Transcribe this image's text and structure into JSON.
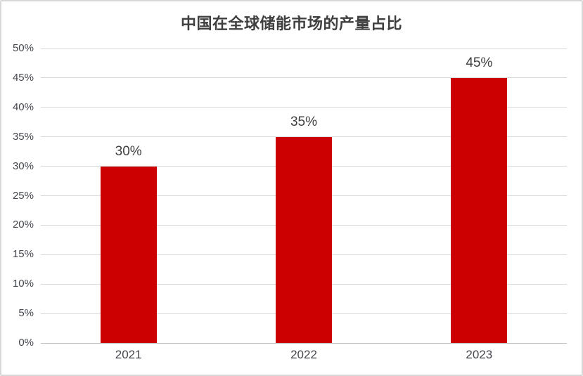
{
  "window": {
    "background_color": "#FFFFFF",
    "border_color": "#D8D8D8"
  },
  "chart_data": {
    "type": "bar",
    "title": "中国在全球储能市场的产量占比",
    "categories": [
      "2021",
      "2022",
      "2023"
    ],
    "values": [
      30,
      35,
      45
    ],
    "value_labels": [
      "30%",
      "35%",
      "45%"
    ],
    "xlabel": "",
    "ylabel": "",
    "ylim": [
      0,
      50
    ],
    "ytick_step": 5,
    "ytick_labels": [
      "0%",
      "5%",
      "10%",
      "15%",
      "20%",
      "25%",
      "30%",
      "35%",
      "40%",
      "45%",
      "50%"
    ],
    "grid": true,
    "legend": "none",
    "bar_color": "#CC0000",
    "gridline_color": "#D9D9D9",
    "axis_line_color": "#C0C0C0",
    "title_color": "#3F3F3F",
    "value_label_color": "#404040",
    "tick_label_color": "#45474E"
  }
}
